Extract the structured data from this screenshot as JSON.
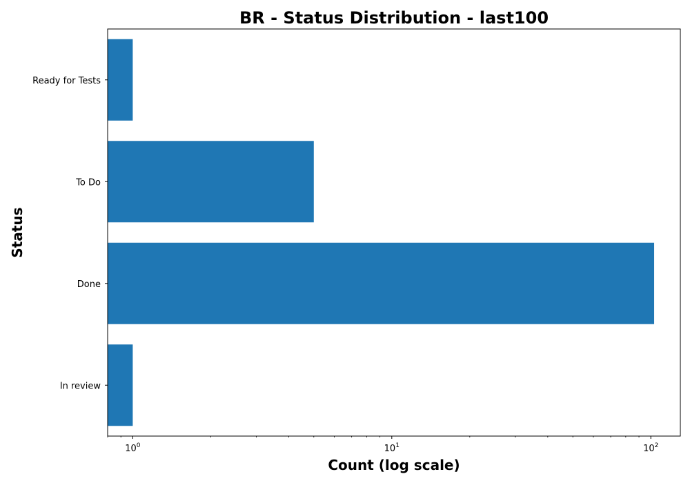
{
  "chart_data": {
    "type": "bar",
    "orientation": "horizontal",
    "title": "BR - Status Distribution - last100",
    "xlabel": "Count (log scale)",
    "ylabel": "Status",
    "x_scale": "log",
    "xlim": [
      0.8,
      130
    ],
    "x_ticks": [
      {
        "base": "10",
        "exp": "0"
      },
      {
        "base": "10",
        "exp": "1"
      },
      {
        "base": "10",
        "exp": "2"
      }
    ],
    "x_tick_values": [
      1,
      10,
      100
    ],
    "categories": [
      "In review",
      "Done",
      "To Do",
      "Ready for Tests"
    ],
    "values": [
      1,
      103,
      5,
      1
    ],
    "bar_color": "#1f77b4",
    "grid": false,
    "legend": "none"
  }
}
